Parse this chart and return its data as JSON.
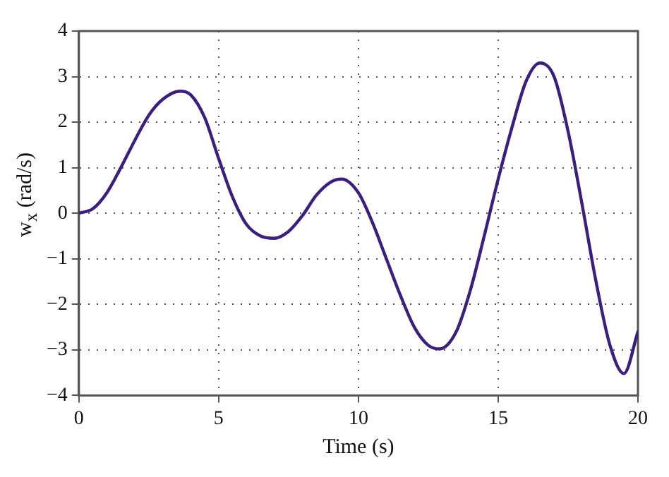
{
  "chart_data": {
    "type": "line",
    "xlabel": "Time (s)",
    "ylabel": "w$_{x}$ (rad/s)",
    "xlim": [
      0,
      20
    ],
    "xticks": [
      0,
      5,
      10,
      15,
      20
    ],
    "ylim": [
      -4,
      4
    ],
    "yticks": [
      -4,
      -3,
      -2,
      -1,
      0,
      1,
      2,
      3,
      4
    ],
    "grid": true,
    "line_style": "solid",
    "marker": "none",
    "legend": false,
    "series": [
      {
        "color": "#3a1f7e",
        "x": [
          0,
          0.5,
          1,
          1.5,
          2,
          2.5,
          3,
          3.6,
          4,
          4.5,
          5,
          5.5,
          6,
          6.5,
          7,
          7.5,
          8,
          8.5,
          9,
          9.4,
          10,
          10.5,
          11,
          11.5,
          12,
          12.5,
          12.9,
          13.5,
          14,
          14.5,
          15,
          15.5,
          16,
          16.5,
          17,
          17.5,
          18,
          18.5,
          19,
          19.5,
          20
        ],
        "values": [
          0,
          0.1,
          0.45,
          1.0,
          1.6,
          2.15,
          2.5,
          2.68,
          2.6,
          2.1,
          1.2,
          0.35,
          -0.25,
          -0.5,
          -0.55,
          -0.4,
          -0.05,
          0.4,
          0.68,
          0.75,
          0.45,
          -0.2,
          -1.0,
          -1.8,
          -2.5,
          -2.9,
          -2.98,
          -2.6,
          -1.7,
          -0.5,
          0.75,
          1.9,
          2.9,
          3.3,
          3.0,
          1.8,
          0.2,
          -1.5,
          -2.9,
          -3.52,
          -2.6
        ]
      }
    ]
  }
}
